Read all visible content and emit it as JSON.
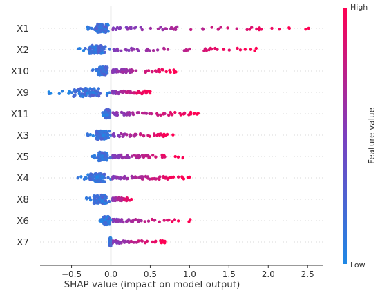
{
  "chart_data": {
    "type": "scatter",
    "subtype": "shap-beeswarm-summary",
    "xlabel": "SHAP value (impact on model output)",
    "xlim": [
      -0.9,
      2.7
    ],
    "x_ticks": [
      -0.5,
      0.0,
      0.5,
      1.0,
      1.5,
      2.0,
      2.5
    ],
    "x_tick_labels": [
      "−0.5",
      "0.0",
      "0.5",
      "1.0",
      "1.5",
      "2.0",
      "2.5"
    ],
    "grid": false,
    "features": [
      {
        "name": "X1",
        "min_shap": -0.3,
        "max_shap": 2.55
      },
      {
        "name": "X2",
        "min_shap": -0.45,
        "max_shap": 1.95
      },
      {
        "name": "X10",
        "min_shap": -0.25,
        "max_shap": 0.85
      },
      {
        "name": "X9",
        "min_shap": -0.8,
        "max_shap": 0.5
      },
      {
        "name": "X11",
        "min_shap": -0.12,
        "max_shap": 1.18
      },
      {
        "name": "X3",
        "min_shap": -0.3,
        "max_shap": 0.8
      },
      {
        "name": "X5",
        "min_shap": -0.25,
        "max_shap": 0.95
      },
      {
        "name": "X4",
        "min_shap": -0.45,
        "max_shap": 1.0
      },
      {
        "name": "X8",
        "min_shap": -0.35,
        "max_shap": 0.28
      },
      {
        "name": "X6",
        "min_shap": -0.15,
        "max_shap": 1.05
      },
      {
        "name": "X7",
        "min_shap": -0.02,
        "max_shap": 0.7
      }
    ],
    "colorbar": {
      "title": "Feature value",
      "high_label": "High",
      "low_label": "Low",
      "low_color": "#1e88e5",
      "mid_color": "#7b3fbf",
      "high_color": "#ff0052"
    },
    "zero_line_color": "#999999"
  }
}
